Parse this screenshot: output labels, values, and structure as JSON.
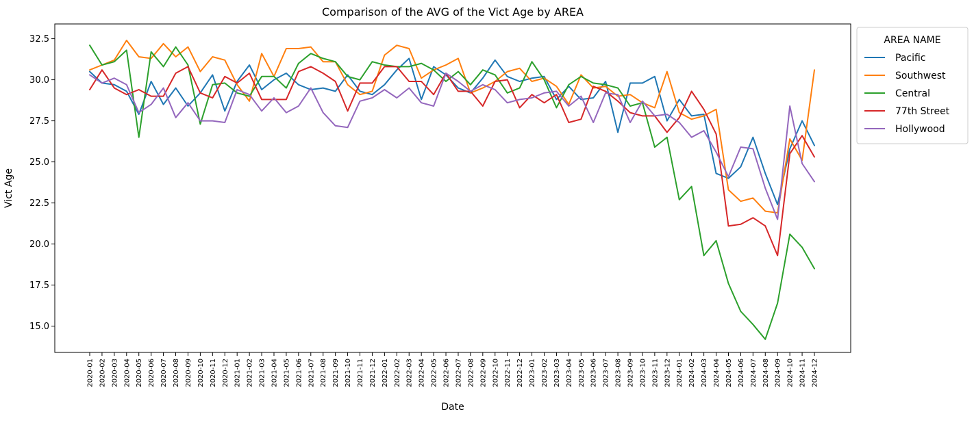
{
  "chart_data": {
    "type": "line",
    "title": "Comparison of the AVG of the Vict Age by AREA",
    "xlabel": "Date",
    "ylabel": "Vict Age",
    "ylim": [
      13.4,
      33.4
    ],
    "yticks": [
      15.0,
      17.5,
      20.0,
      22.5,
      25.0,
      27.5,
      30.0,
      32.5
    ],
    "ytick_labels": [
      "15.0",
      "17.5",
      "20.0",
      "22.5",
      "25.0",
      "27.5",
      "30.0",
      "32.5"
    ],
    "grid": false,
    "legend": {
      "title": "AREA NAME",
      "placement": "outside-right-top"
    },
    "x": [
      "2020-01",
      "2020-02",
      "2020-03",
      "2020-04",
      "2020-05",
      "2020-06",
      "2020-07",
      "2020-08",
      "2020-09",
      "2020-10",
      "2020-11",
      "2020-12",
      "2021-01",
      "2021-02",
      "2021-03",
      "2021-04",
      "2021-05",
      "2021-06",
      "2021-07",
      "2021-08",
      "2021-09",
      "2021-10",
      "2021-11",
      "2021-12",
      "2022-01",
      "2022-02",
      "2022-03",
      "2022-04",
      "2022-05",
      "2022-06",
      "2022-07",
      "2022-08",
      "2022-09",
      "2022-10",
      "2022-11",
      "2022-12",
      "2023-01",
      "2023-02",
      "2023-03",
      "2023-04",
      "2023-05",
      "2023-06",
      "2023-07",
      "2023-08",
      "2023-09",
      "2023-10",
      "2023-11",
      "2023-12",
      "2024-01",
      "2024-02",
      "2024-03",
      "2024-04",
      "2024-05",
      "2024-06",
      "2024-07",
      "2024-08",
      "2024-09",
      "2024-10",
      "2024-11",
      "2024-12"
    ],
    "series": [
      {
        "name": "Pacific",
        "color": "#1f77b4",
        "values": [
          30.5,
          29.8,
          29.7,
          29.3,
          27.9,
          29.9,
          28.5,
          29.5,
          28.4,
          29.2,
          30.3,
          28.1,
          29.9,
          30.9,
          29.4,
          30.0,
          30.4,
          29.7,
          29.4,
          29.5,
          29.3,
          30.3,
          29.3,
          29.1,
          29.7,
          30.6,
          31.3,
          28.8,
          30.8,
          30.3,
          29.5,
          29.2,
          30.1,
          31.2,
          30.2,
          29.9,
          30.1,
          30.2,
          28.8,
          29.6,
          28.8,
          28.9,
          29.9,
          26.8,
          29.8,
          29.8,
          30.2,
          27.5,
          28.8,
          27.8,
          27.9,
          24.3,
          24.0,
          24.7,
          26.5,
          24.3,
          22.4,
          25.8,
          27.5,
          26.0
        ]
      },
      {
        "name": "Southwest",
        "color": "#ff7f0e",
        "values": [
          30.6,
          30.9,
          31.2,
          32.4,
          31.4,
          31.3,
          32.2,
          31.4,
          32.0,
          30.5,
          31.4,
          31.2,
          29.7,
          28.7,
          31.6,
          30.2,
          31.9,
          31.9,
          32.0,
          31.1,
          31.1,
          29.7,
          29.1,
          29.3,
          31.5,
          32.1,
          31.9,
          30.1,
          30.6,
          30.9,
          31.3,
          29.2,
          29.5,
          29.9,
          30.5,
          30.7,
          29.9,
          30.1,
          29.6,
          28.5,
          30.3,
          29.5,
          29.6,
          29.0,
          29.1,
          28.6,
          28.3,
          30.5,
          28.0,
          27.6,
          27.8,
          28.2,
          23.3,
          22.6,
          22.8,
          22.0,
          21.9,
          26.4,
          25.1,
          30.6
        ]
      },
      {
        "name": "Central",
        "color": "#2ca02c",
        "values": [
          32.1,
          30.9,
          31.1,
          31.8,
          26.5,
          31.7,
          30.8,
          32.0,
          30.9,
          27.3,
          29.7,
          29.8,
          29.2,
          29.0,
          30.2,
          30.2,
          29.5,
          31.0,
          31.6,
          31.3,
          31.1,
          30.2,
          30.0,
          31.1,
          30.9,
          30.8,
          30.8,
          31.0,
          30.6,
          29.9,
          30.5,
          29.7,
          30.6,
          30.3,
          29.2,
          29.5,
          31.1,
          30.0,
          28.3,
          29.7,
          30.2,
          29.8,
          29.7,
          29.5,
          28.4,
          28.6,
          25.9,
          26.5,
          22.7,
          23.5,
          19.3,
          20.2,
          17.6,
          15.9,
          15.1,
          14.2,
          16.4,
          20.6,
          19.8,
          18.5
        ]
      },
      {
        "name": "77th Street",
        "color": "#d62728",
        "values": [
          29.4,
          30.6,
          29.5,
          29.1,
          29.4,
          29.0,
          29.0,
          30.4,
          30.8,
          29.2,
          28.9,
          30.2,
          29.8,
          30.4,
          28.8,
          28.8,
          28.8,
          30.5,
          30.8,
          30.4,
          29.9,
          28.1,
          29.8,
          29.8,
          30.8,
          30.8,
          29.9,
          29.9,
          29.1,
          30.4,
          29.3,
          29.3,
          28.4,
          29.9,
          30.0,
          28.3,
          29.1,
          28.6,
          29.1,
          27.4,
          27.6,
          29.6,
          29.3,
          28.7,
          28.0,
          27.8,
          27.8,
          26.8,
          27.7,
          29.3,
          28.2,
          26.7,
          21.1,
          21.2,
          21.6,
          21.1,
          19.3,
          25.5,
          26.6,
          25.3
        ]
      },
      {
        "name": "Hollywood",
        "color": "#9467bd",
        "values": [
          30.3,
          29.8,
          30.1,
          29.7,
          28.0,
          28.5,
          29.5,
          27.7,
          28.6,
          27.5,
          27.5,
          27.4,
          29.4,
          29.1,
          28.1,
          28.9,
          28.0,
          28.4,
          29.5,
          28.0,
          27.2,
          27.1,
          28.7,
          28.9,
          29.4,
          28.9,
          29.5,
          28.6,
          28.4,
          30.4,
          29.9,
          29.3,
          29.7,
          29.4,
          28.6,
          28.8,
          28.9,
          29.2,
          29.3,
          28.4,
          29.0,
          27.4,
          29.2,
          29.1,
          27.4,
          28.7,
          27.8,
          27.9,
          27.4,
          26.5,
          26.9,
          25.6,
          24.1,
          25.9,
          25.8,
          23.4,
          21.5,
          28.4,
          24.9,
          23.8
        ]
      }
    ]
  }
}
